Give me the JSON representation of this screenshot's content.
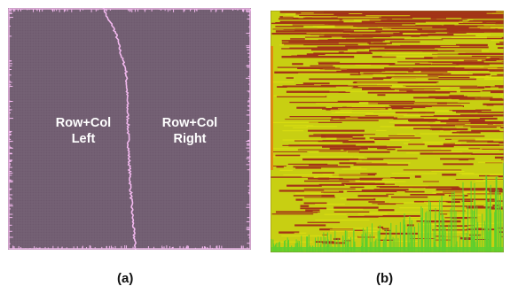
{
  "figure": {
    "panel_a": {
      "regions": [
        "Row+Col\nLeft",
        "Row+Col\nRight"
      ],
      "caption": "(a)",
      "colors": {
        "background": "#6e5a6e",
        "grid": "#7c6a7c",
        "trace": "#f2b8ee",
        "border": "#efbbe9"
      }
    },
    "panel_b": {
      "caption": "(b)",
      "colors": {
        "base": "#c8cf12",
        "hot": "#a33517",
        "cool": "#5fcf2e",
        "edge": "#e38a10"
      }
    }
  }
}
